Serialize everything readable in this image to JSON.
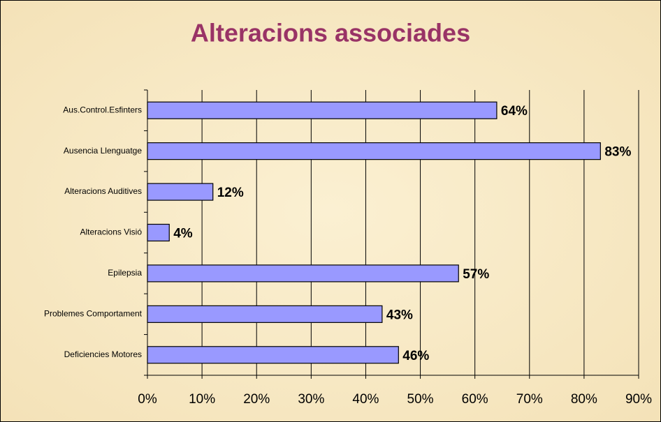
{
  "chart_data": {
    "type": "bar",
    "orientation": "horizontal",
    "title": "Alteracions associades",
    "categories": [
      "Aus.Control.Esfinters",
      "Ausencia Llenguatge",
      "Alteracions Auditives",
      "Alteracions Visió",
      "Epilepsia",
      "Problemes Comportament",
      "Deficiencies Motores"
    ],
    "values": [
      64,
      83,
      12,
      4,
      57,
      43,
      46
    ],
    "value_labels": [
      "64%",
      "83%",
      "12%",
      "4%",
      "57%",
      "43%",
      "46%"
    ],
    "color": "#9999ff",
    "xlim": [
      0,
      90
    ],
    "xticks": [
      {
        "value": 0,
        "label": "0%"
      },
      {
        "value": 10,
        "label": "10%"
      },
      {
        "value": 20,
        "label": "20%"
      },
      {
        "value": 30,
        "label": "30%"
      },
      {
        "value": 40,
        "label": "40%"
      },
      {
        "value": 50,
        "label": "50%"
      },
      {
        "value": 60,
        "label": "60%"
      },
      {
        "value": 70,
        "label": "70%"
      },
      {
        "value": 80,
        "label": "80%"
      },
      {
        "value": 90,
        "label": "90%"
      }
    ],
    "grid": true
  }
}
